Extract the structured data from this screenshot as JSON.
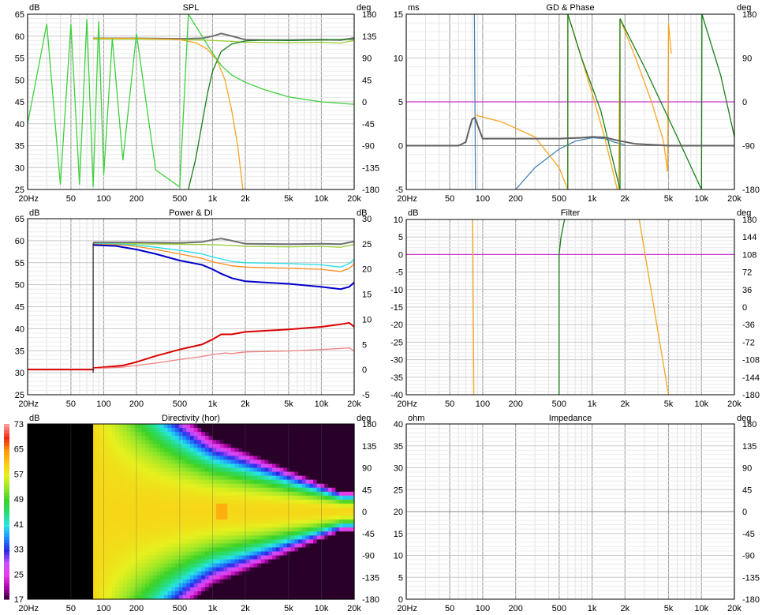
{
  "chart_data": [
    {
      "id": "spl",
      "type": "line",
      "title": "SPL",
      "left_unit": "dB",
      "right_unit": "deg",
      "x_ticks": [
        "20Hz",
        "50",
        "100",
        "200",
        "500",
        "1k",
        "2k",
        "5k",
        "10k",
        "20k"
      ],
      "y_left_ticks": [
        "65",
        "60",
        "55",
        "50",
        "45",
        "40",
        "35",
        "30",
        "25"
      ],
      "y_right_ticks": [
        "180",
        "135",
        "90",
        "45",
        "0",
        "-45",
        "-90",
        "-135",
        "-180"
      ],
      "ylim": [
        25,
        65
      ],
      "series": [
        {
          "color": "#707070",
          "axis": "left",
          "x": [
            80,
            200,
            500,
            800,
            1000,
            1200,
            1400,
            2000,
            3000,
            5000,
            10000,
            15000,
            18000,
            20000
          ],
          "y": [
            59.5,
            59.5,
            59.4,
            59.5,
            60,
            60.6,
            60.2,
            59.2,
            59.1,
            59.1,
            59.2,
            59.1,
            59.4,
            59.6
          ]
        },
        {
          "color": "#9acd32",
          "axis": "left",
          "x": [
            80,
            200,
            500,
            800,
            1000,
            1500,
            2000,
            5000,
            10000,
            15000,
            18000,
            20000
          ],
          "y": [
            59.3,
            59.3,
            59.2,
            59.1,
            59,
            58.8,
            58.6,
            58.5,
            58.6,
            58.4,
            58.8,
            59
          ]
        },
        {
          "color": "#f5a623",
          "axis": "left",
          "x": [
            80,
            200,
            500,
            700,
            900,
            1100,
            1300,
            1500,
            1700,
            1900
          ],
          "y": [
            59.5,
            59.5,
            59.2,
            58.5,
            57,
            54.5,
            50,
            43,
            35,
            25
          ]
        },
        {
          "color": "#1a7f1a",
          "axis": "left",
          "x": [
            600,
            700,
            800,
            900,
            1000,
            1200,
            1500,
            2000,
            3000,
            5000,
            10000,
            20000
          ],
          "y": [
            25,
            32,
            40,
            47,
            52,
            56.5,
            58.2,
            58.9,
            59.1,
            59,
            59.1,
            59.3
          ]
        },
        {
          "color": "#3dd13d",
          "axis": "right",
          "x": [
            20,
            30,
            40,
            50,
            60,
            70,
            80,
            90,
            100,
            120,
            150,
            200,
            300,
            500,
            600,
            800,
            1000,
            1200,
            1500,
            2000,
            3000,
            5000,
            10000,
            20000
          ],
          "y": [
            -45,
            160,
            -170,
            160,
            -170,
            170,
            -175,
            165,
            -150,
            130,
            -120,
            140,
            -140,
            -175,
            180,
            135,
            100,
            75,
            55,
            40,
            25,
            10,
            0,
            -5
          ]
        }
      ]
    },
    {
      "id": "gd_phase",
      "type": "line",
      "title": "GD & Phase",
      "left_unit": "ms",
      "right_unit": "deg",
      "x_ticks": [
        "20Hz",
        "50",
        "100",
        "200",
        "500",
        "1k",
        "2k",
        "5k",
        "10k",
        "20k"
      ],
      "y_left_ticks": [
        "15",
        "10",
        "5",
        "0",
        "-5"
      ],
      "y_right_ticks": [
        "180",
        "90",
        "0",
        "-90",
        "-180"
      ],
      "ylim": [
        -5,
        15
      ],
      "series": [
        {
          "color": "#cc33cc",
          "axis": "left",
          "x": [
            20,
            20000
          ],
          "y": [
            5,
            5
          ]
        },
        {
          "color": "#4682b4",
          "axis": "left",
          "x": [
            84,
            85,
            86
          ],
          "y": [
            15,
            5,
            -5
          ]
        },
        {
          "color": "#4682b4",
          "axis": "left",
          "x": [
            200,
            300,
            500,
            700,
            1000,
            1300,
            1600,
            2000
          ],
          "y": [
            -5,
            -2.5,
            -0.4,
            0.5,
            0.9,
            0.8,
            0.4,
            0.1
          ]
        },
        {
          "color": "#f5a623",
          "axis": "left",
          "x": [
            85,
            150,
            300,
            500,
            600
          ],
          "y": [
            3.5,
            2.7,
            1,
            -2.5,
            -5
          ]
        },
        {
          "color": "#f5a623",
          "axis": "left",
          "x": [
            600,
            601,
            800,
            1000,
            1300,
            1700
          ],
          "y": [
            -5,
            15,
            10,
            6,
            1,
            -5
          ]
        },
        {
          "color": "#f5a623",
          "axis": "left",
          "x": [
            1750,
            1800,
            2500,
            3500,
            4500,
            4900,
            5000,
            5300
          ],
          "y": [
            -5,
            14.5,
            10,
            5,
            0.5,
            -3,
            14,
            10.5
          ]
        },
        {
          "color": "#1a7f1a",
          "axis": "left",
          "x": [
            600,
            601,
            800,
            1200,
            1800
          ],
          "y": [
            -5,
            15,
            10,
            4,
            -5
          ]
        },
        {
          "color": "#1a7f1a",
          "axis": "left",
          "x": [
            1800,
            1801,
            3000,
            6000,
            10000,
            10100
          ],
          "y": [
            -5,
            14.5,
            9,
            1,
            -5,
            15
          ]
        },
        {
          "color": "#1a7f1a",
          "axis": "left",
          "x": [
            10100,
            15000,
            20000
          ],
          "y": [
            15,
            8,
            1
          ]
        },
        {
          "color": "#606060",
          "axis": "left",
          "x": [
            20,
            60,
            70,
            75,
            80,
            85,
            90,
            100,
            200,
            500,
            800,
            1000,
            1300,
            1700,
            2500,
            5000,
            10000,
            20000
          ],
          "y": [
            0,
            0,
            0.4,
            1.8,
            3,
            3.2,
            2.3,
            0.8,
            0.8,
            0.8,
            0.9,
            1,
            0.95,
            0.6,
            0.2,
            0,
            0,
            0
          ]
        }
      ]
    },
    {
      "id": "power_di",
      "type": "line",
      "title": "Power & DI",
      "left_unit": "dB",
      "right_unit": "dB",
      "x_ticks": [
        "20Hz",
        "50",
        "100",
        "200",
        "500",
        "1k",
        "2k",
        "5k",
        "10k",
        "20k"
      ],
      "y_left_ticks": [
        "65",
        "60",
        "55",
        "50",
        "45",
        "40",
        "35",
        "30",
        "25"
      ],
      "y_right_ticks": [
        "30",
        "25",
        "20",
        "15",
        "10",
        "5",
        "0",
        "-5"
      ],
      "ylim": [
        25,
        65
      ],
      "series": [
        {
          "color": "#707070",
          "axis": "left",
          "x": [
            80,
            200,
            500,
            800,
            1000,
            1200,
            1500,
            2000,
            5000,
            10000,
            15000,
            18000,
            20000
          ],
          "y": [
            59.6,
            59.6,
            59.5,
            59.7,
            60.2,
            60.5,
            60,
            59.3,
            59.2,
            59.3,
            59.2,
            59.6,
            59.8
          ]
        },
        {
          "color": "#9acd32",
          "axis": "left",
          "x": [
            80,
            200,
            500,
            1000,
            1500,
            2000,
            5000,
            10000,
            15000,
            18000,
            20000
          ],
          "y": [
            59.3,
            59.3,
            59.2,
            59.1,
            58.9,
            58.7,
            58.6,
            58.7,
            58.5,
            58.9,
            59.2
          ]
        },
        {
          "color": "#20e0e8",
          "axis": "left",
          "x": [
            80,
            150,
            200,
            300,
            500,
            800,
            1000,
            1500,
            2000,
            5000,
            10000,
            15000,
            18000,
            20000
          ],
          "y": [
            59.3,
            59.2,
            59,
            58.5,
            57.8,
            57,
            56.3,
            55.3,
            55,
            54.8,
            54.5,
            54,
            54.8,
            55.8
          ]
        },
        {
          "color": "#ff8c1a",
          "axis": "left",
          "x": [
            80,
            150,
            200,
            300,
            500,
            800,
            1000,
            1500,
            2000,
            5000,
            10000,
            15000,
            18000,
            20000
          ],
          "y": [
            59.2,
            59,
            58.7,
            58,
            57,
            56,
            55.2,
            54.3,
            54,
            53.7,
            53.5,
            53,
            53.7,
            54.7
          ]
        },
        {
          "color": "#0000cc",
          "axis": "left",
          "x": [
            80,
            130,
            200,
            300,
            500,
            800,
            1000,
            1200,
            1500,
            2000,
            3000,
            5000,
            10000,
            15000,
            18000,
            20000
          ],
          "y": [
            59,
            58.8,
            58,
            57,
            55.5,
            54.5,
            53.5,
            52.5,
            51.5,
            50.8,
            50.5,
            50.2,
            49.5,
            49,
            49.5,
            50.5
          ]
        },
        {
          "color": "#dd0000",
          "axis": "right",
          "x": [
            20,
            80,
            81,
            150,
            200,
            300,
            500,
            800,
            1000,
            1200,
            1500,
            2000,
            5000,
            10000,
            15000,
            18000,
            20000
          ],
          "y": [
            0,
            0,
            0.3,
            0.8,
            1.5,
            2.7,
            4,
            5,
            6,
            7,
            7,
            7.5,
            8,
            8.5,
            9,
            9.3,
            8.5
          ]
        },
        {
          "color": "#f08080",
          "axis": "right",
          "x": [
            80,
            150,
            200,
            300,
            500,
            800,
            1000,
            1300,
            1500,
            2000,
            5000,
            10000,
            15000,
            18000,
            20000
          ],
          "y": [
            0.2,
            0.5,
            0.8,
            1.3,
            2,
            2.6,
            3,
            3.3,
            3.2,
            3.5,
            3.7,
            4,
            4.2,
            4.3,
            3.7
          ]
        },
        {
          "color": "#303030",
          "axis": "left",
          "x": [
            80,
            80
          ],
          "y": [
            30,
            59.5
          ]
        }
      ]
    },
    {
      "id": "filter",
      "type": "line",
      "title": "Filter",
      "left_unit": "dB",
      "right_unit": "deg",
      "x_ticks": [
        "20Hz",
        "50",
        "100",
        "200",
        "500",
        "1k",
        "2k",
        "5k",
        "10k",
        "20k"
      ],
      "y_left_ticks": [
        "10",
        "5",
        "0",
        "-5",
        "-10",
        "-15",
        "-20",
        "-25",
        "-30",
        "-35",
        "-40"
      ],
      "y_right_ticks": [
        "180",
        "144",
        "108",
        "72",
        "36",
        "0",
        "-36",
        "-72",
        "-108",
        "-144",
        "-180"
      ],
      "ylim": [
        -40,
        10
      ],
      "series": [
        {
          "color": "#cc33cc",
          "axis": "left",
          "x": [
            20,
            20000
          ],
          "y": [
            0,
            0
          ]
        },
        {
          "color": "#f5a623",
          "axis": "left",
          "x": [
            81,
            82,
            83
          ],
          "y": [
            10,
            -15,
            -40
          ]
        },
        {
          "color": "#f5a623",
          "axis": "left",
          "x": [
            2700,
            5000
          ],
          "y": [
            10,
            -40
          ]
        },
        {
          "color": "#1a7f1a",
          "axis": "left",
          "x": [
            500,
            500,
            520,
            560
          ],
          "y": [
            -40,
            0,
            5,
            10
          ]
        }
      ]
    },
    {
      "id": "directivity",
      "type": "heatmap",
      "title": "Directivity (hor)",
      "left_unit": "dB",
      "right_unit": "deg",
      "x_ticks": [
        "20Hz",
        "50",
        "100",
        "200",
        "500",
        "1k",
        "2k",
        "5k",
        "10k",
        "20k"
      ],
      "y_right_ticks": [
        "180",
        "135",
        "90",
        "45",
        "0",
        "-45",
        "-90",
        "-135",
        "-180"
      ],
      "colorbar_ticks": [
        "73",
        "65",
        "57",
        "49",
        "41",
        "33",
        "25",
        "17"
      ],
      "zlim": [
        17,
        73
      ]
    },
    {
      "id": "impedance",
      "type": "line",
      "title": "Impedance",
      "left_unit": "ohm",
      "right_unit": "deg",
      "x_ticks": [
        "20Hz",
        "50",
        "100",
        "200",
        "500",
        "1k",
        "2k",
        "5k",
        "10k",
        "20k"
      ],
      "y_left_ticks": [
        "40",
        "35",
        "30",
        "25",
        "20",
        "15",
        "10",
        "5",
        "0"
      ],
      "y_right_ticks": [
        "180",
        "135",
        "90",
        "45",
        "0",
        "-45",
        "-90",
        "-135",
        "-180"
      ],
      "ylim": [
        0,
        40
      ],
      "series": []
    }
  ]
}
